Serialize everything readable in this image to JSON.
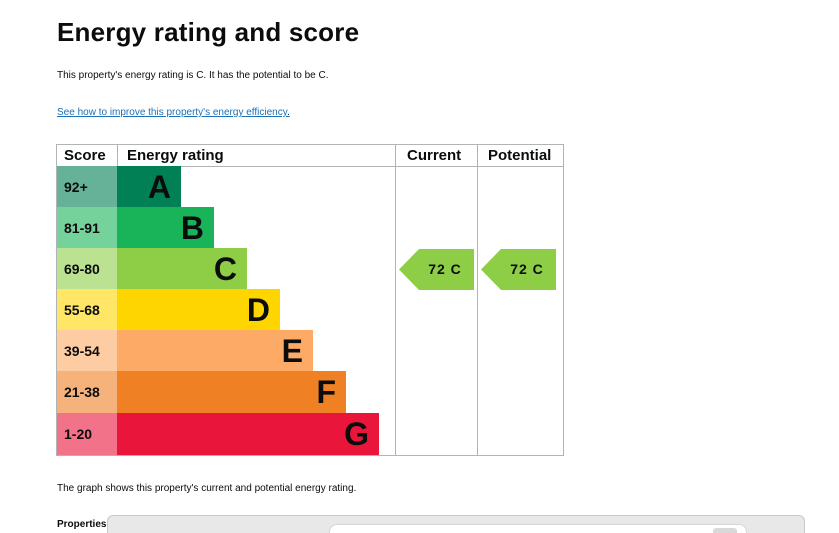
{
  "title": "Energy rating and score",
  "intro": "This property's energy rating is C. It has the potential to be C.",
  "improve_link": "See how to improve this property's energy efficiency",
  "improve_link_suffix": ".",
  "table": {
    "headers": {
      "score": "Score",
      "rating": "Energy rating",
      "current": "Current",
      "potential": "Potential"
    },
    "bands": [
      {
        "score": "92+",
        "letter": "A",
        "color": "#008054",
        "score_bg": "#66b298"
      },
      {
        "score": "81-91",
        "letter": "B",
        "color": "#19b459",
        "score_bg": "#75d29b"
      },
      {
        "score": "69-80",
        "letter": "C",
        "color": "#8dce46",
        "score_bg": "#bbe290"
      },
      {
        "score": "55-68",
        "letter": "D",
        "color": "#ffd500",
        "score_bg": "#ffe666"
      },
      {
        "score": "39-54",
        "letter": "E",
        "color": "#fcaa65",
        "score_bg": "#fdcca3"
      },
      {
        "score": "21-38",
        "letter": "F",
        "color": "#ef8023",
        "score_bg": "#f5b37b"
      },
      {
        "score": "1-20",
        "letter": "G",
        "color": "#e9153b",
        "score_bg": "#f27389"
      }
    ],
    "current": {
      "label": "72 C",
      "color": "#8dce46"
    },
    "potential": {
      "label": "72 C",
      "color": "#8dce46"
    }
  },
  "graph_caption": "The graph shows this property's current and potential energy rating.",
  "properties_label": "Properties"
}
